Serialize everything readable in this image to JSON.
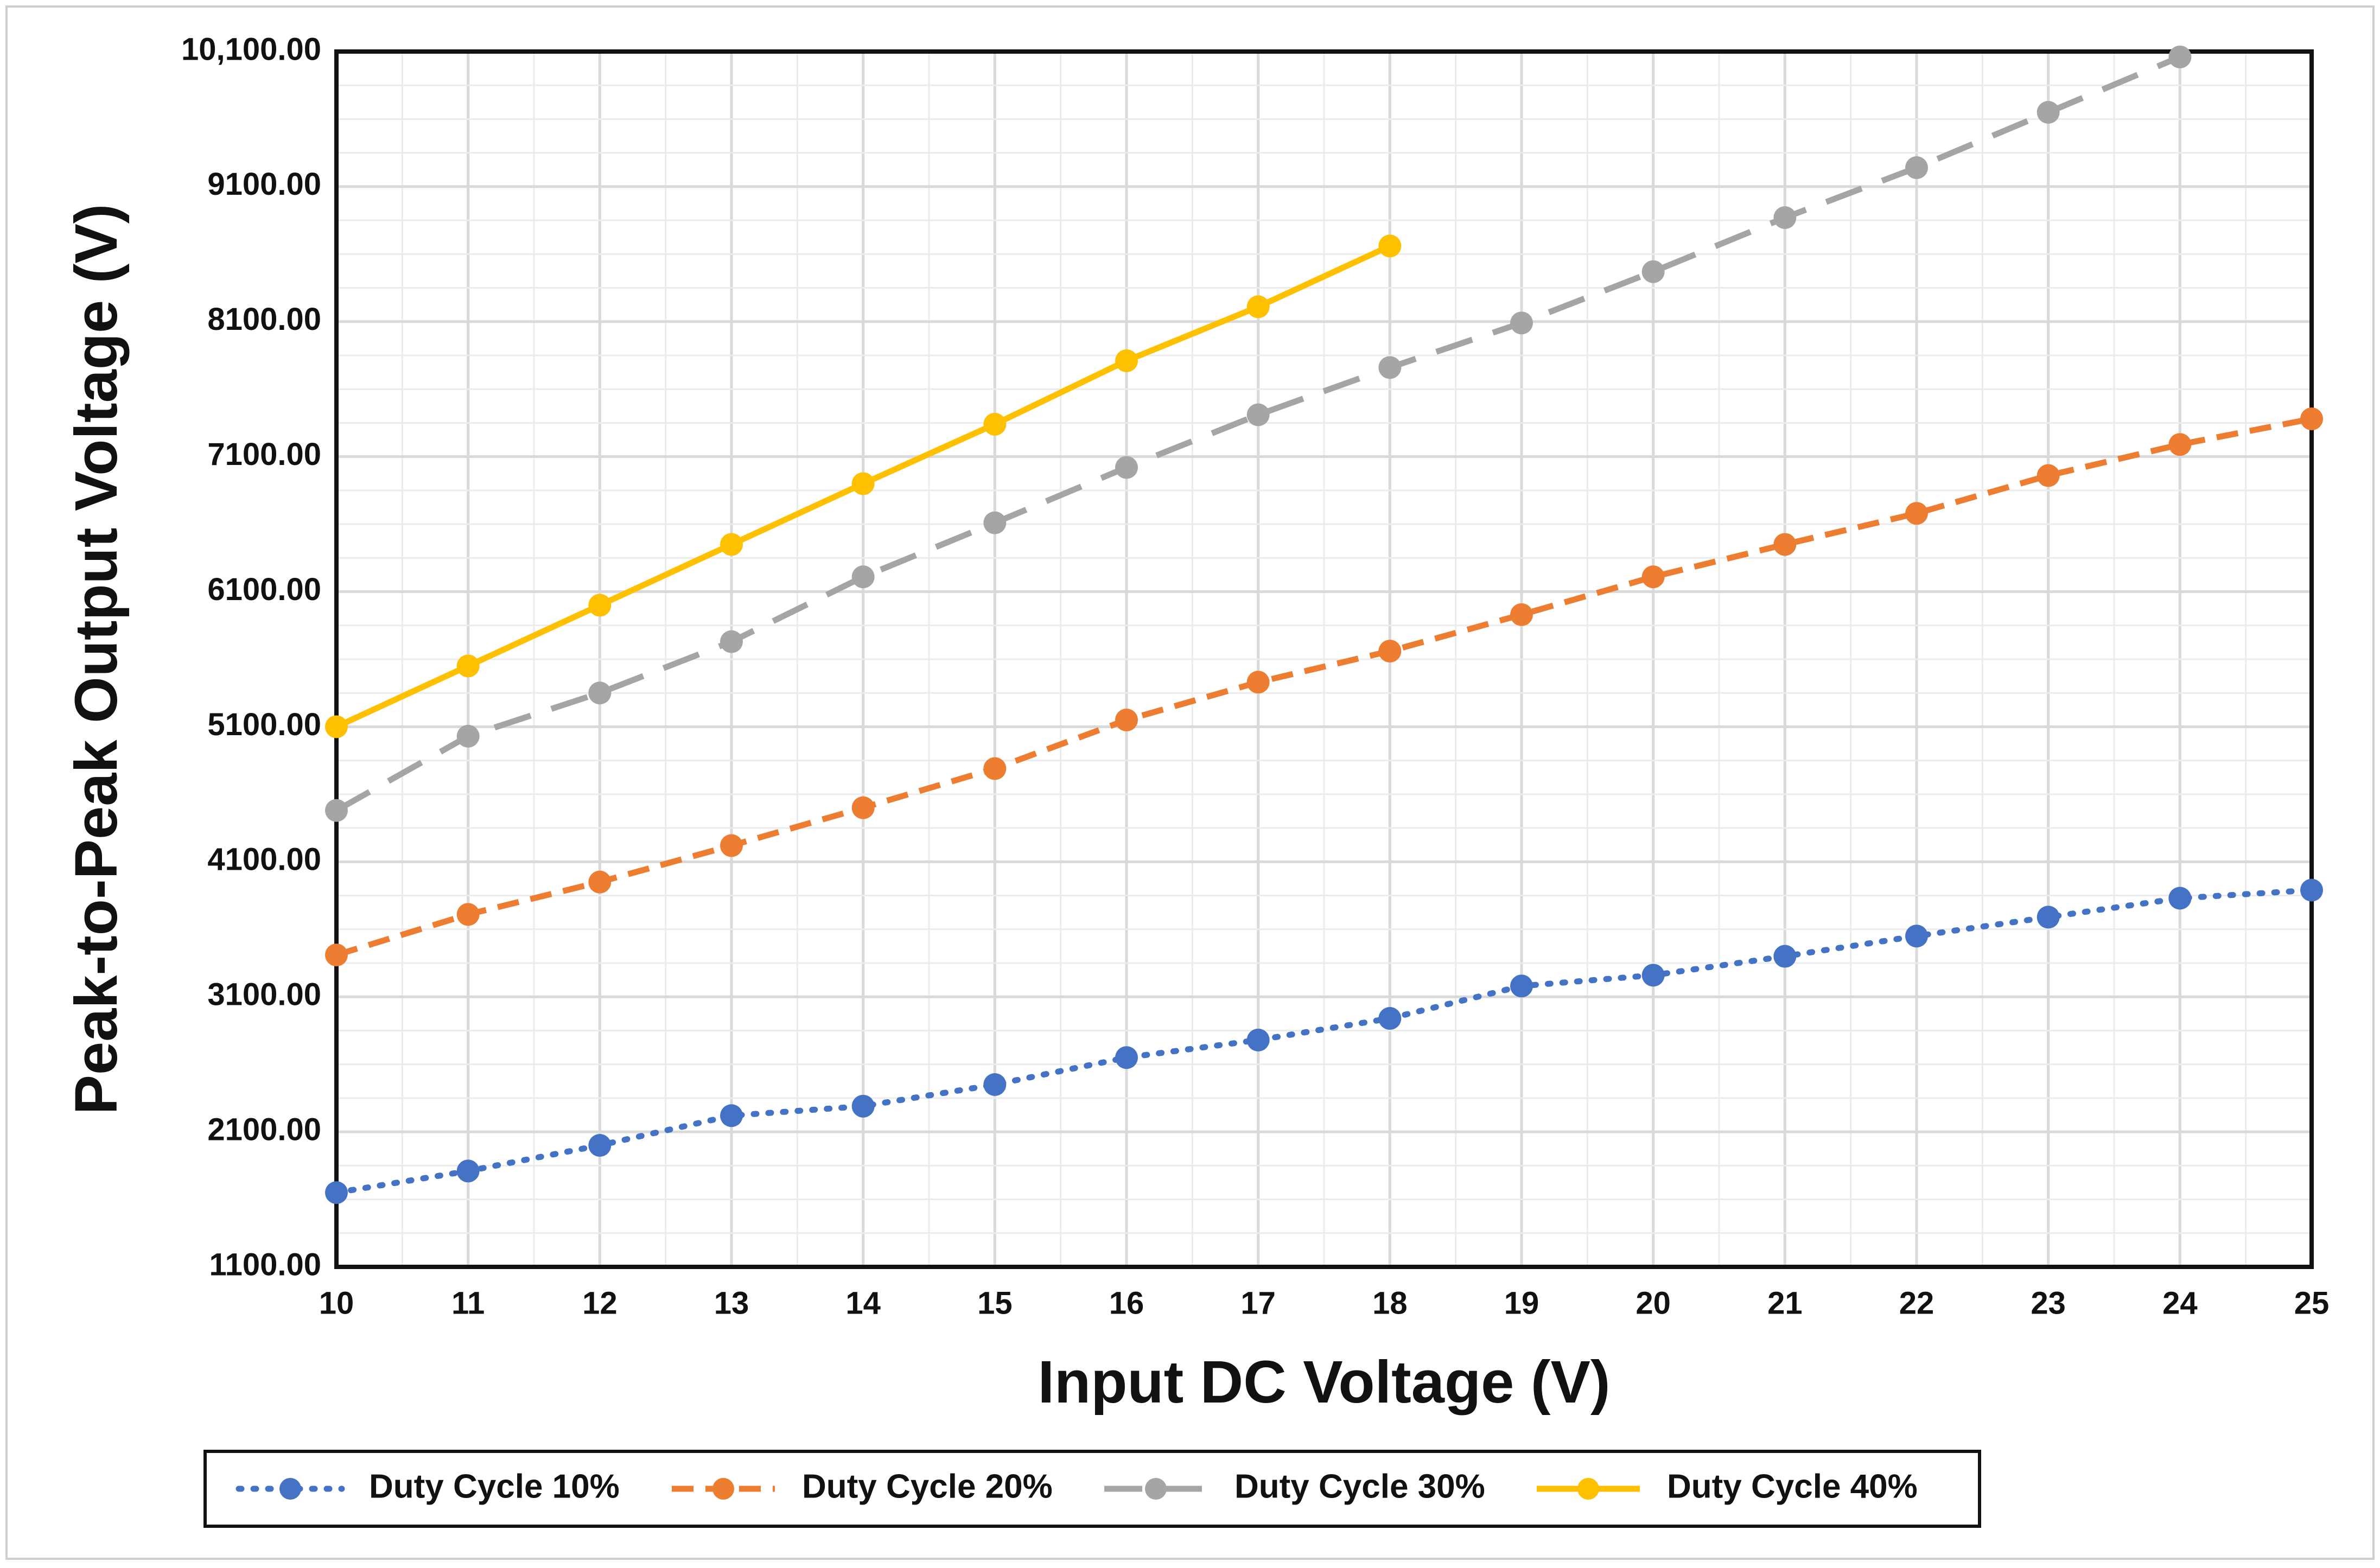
{
  "chart_data": {
    "type": "line",
    "title": "",
    "xlabel": "Input DC Voltage (V)",
    "ylabel": "Peak-to-Peak Output Voltage (V)",
    "xlim": [
      10,
      25
    ],
    "ylim": [
      1100,
      10100
    ],
    "x_ticks": [
      10,
      11,
      12,
      13,
      14,
      15,
      16,
      17,
      18,
      19,
      20,
      21,
      22,
      23,
      24,
      25
    ],
    "y_ticks": [
      1100,
      2100,
      3100,
      4100,
      5100,
      6100,
      7100,
      8100,
      9100,
      10100
    ],
    "y_tick_labels": [
      "1100.00",
      "2100.00",
      "3100.00",
      "4100.00",
      "5100.00",
      "6100.00",
      "7100.00",
      "8100.00",
      "9100.00",
      "10,100.00"
    ],
    "grid": true,
    "legend_position": "bottom",
    "series": [
      {
        "name": "Duty Cycle 10%",
        "color": "#4472C4",
        "dash": "dotted",
        "x": [
          10,
          11,
          12,
          13,
          14,
          15,
          16,
          17,
          18,
          19,
          20,
          21,
          22,
          23,
          24,
          25
        ],
        "values": [
          1650,
          1810,
          2000,
          2220,
          2290,
          2450,
          2650,
          2780,
          2940,
          3180,
          3260,
          3400,
          3550,
          3690,
          3830,
          3890
        ]
      },
      {
        "name": "Duty Cycle 20%",
        "color": "#ED7D31",
        "dash": "dashed",
        "x": [
          10,
          11,
          12,
          13,
          14,
          15,
          16,
          17,
          18,
          19,
          20,
          21,
          22,
          23,
          24,
          25
        ],
        "values": [
          3410,
          3710,
          3950,
          4220,
          4500,
          4790,
          5150,
          5430,
          5660,
          5930,
          6210,
          6450,
          6680,
          6960,
          7190,
          7380
        ]
      },
      {
        "name": "Duty Cycle 30%",
        "color": "#A5A5A5",
        "dash": "long-dashed",
        "x": [
          10,
          11,
          12,
          13,
          14,
          15,
          16,
          17,
          18,
          19,
          20,
          21,
          22,
          23,
          24
        ],
        "values": [
          4480,
          5030,
          5350,
          5730,
          6210,
          6610,
          7020,
          7410,
          7760,
          8090,
          8470,
          8870,
          9240,
          9650,
          10060
        ]
      },
      {
        "name": "Duty Cycle 40%",
        "color": "#FFC000",
        "dash": "solid",
        "x": [
          10,
          11,
          12,
          13,
          14,
          15,
          16,
          17,
          18
        ],
        "values": [
          5100,
          5550,
          6000,
          6450,
          6900,
          7340,
          7810,
          8210,
          8660
        ]
      }
    ]
  }
}
